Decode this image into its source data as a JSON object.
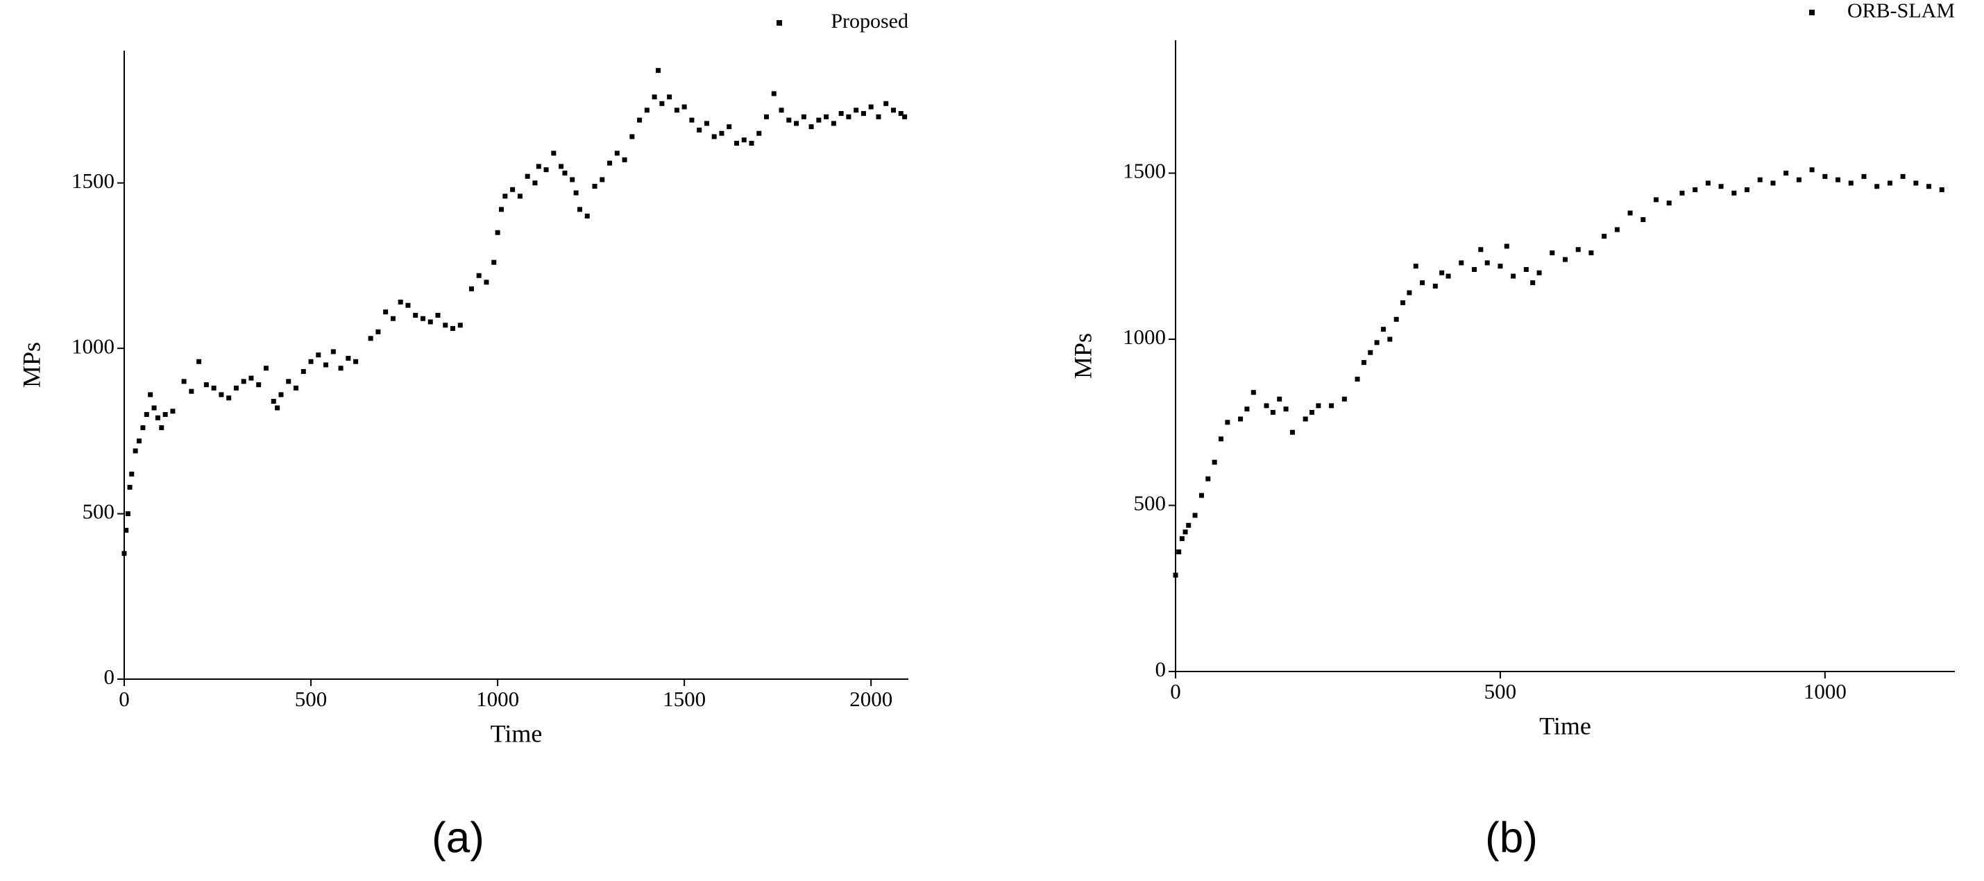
{
  "chart_data": [
    {
      "type": "scatter",
      "panel_label": "(a)",
      "x_label": "Time",
      "y_label": "MPs",
      "xlim": [
        0,
        2100
      ],
      "ylim": [
        0,
        1900
      ],
      "xticks": [
        0,
        500,
        1000,
        1500,
        2000
      ],
      "yticks": [
        0,
        500,
        1000,
        1500
      ],
      "legend": "upper right",
      "series": [
        {
          "name": "Proposed",
          "color": "#000000",
          "x": [
            0,
            5,
            10,
            15,
            20,
            30,
            40,
            50,
            60,
            70,
            80,
            90,
            100,
            110,
            130,
            160,
            180,
            200,
            220,
            240,
            260,
            280,
            300,
            320,
            340,
            360,
            380,
            400,
            410,
            420,
            440,
            460,
            480,
            500,
            520,
            540,
            560,
            580,
            600,
            620,
            660,
            680,
            700,
            720,
            740,
            760,
            780,
            800,
            820,
            840,
            860,
            880,
            900,
            930,
            950,
            970,
            990,
            1000,
            1010,
            1020,
            1040,
            1060,
            1080,
            1100,
            1110,
            1130,
            1150,
            1170,
            1180,
            1200,
            1210,
            1220,
            1240,
            1260,
            1280,
            1300,
            1320,
            1340,
            1360,
            1380,
            1400,
            1420,
            1430,
            1440,
            1460,
            1480,
            1500,
            1520,
            1540,
            1560,
            1580,
            1600,
            1620,
            1640,
            1660,
            1680,
            1700,
            1720,
            1740,
            1760,
            1780,
            1800,
            1820,
            1840,
            1860,
            1880,
            1900,
            1920,
            1940,
            1960,
            1980,
            2000,
            2020,
            2040,
            2060,
            2080,
            2090
          ],
          "values": [
            380,
            450,
            500,
            580,
            620,
            690,
            720,
            760,
            800,
            860,
            820,
            790,
            760,
            800,
            810,
            900,
            870,
            960,
            890,
            880,
            860,
            850,
            880,
            900,
            910,
            890,
            940,
            840,
            820,
            860,
            900,
            880,
            930,
            960,
            980,
            950,
            990,
            940,
            970,
            960,
            1030,
            1050,
            1110,
            1090,
            1140,
            1130,
            1100,
            1090,
            1080,
            1100,
            1070,
            1060,
            1070,
            1180,
            1220,
            1200,
            1260,
            1350,
            1420,
            1460,
            1480,
            1460,
            1520,
            1500,
            1550,
            1540,
            1590,
            1550,
            1530,
            1510,
            1470,
            1420,
            1400,
            1490,
            1510,
            1560,
            1590,
            1570,
            1640,
            1690,
            1720,
            1760,
            1840,
            1740,
            1760,
            1720,
            1730,
            1690,
            1660,
            1680,
            1640,
            1650,
            1670,
            1620,
            1630,
            1620,
            1650,
            1700,
            1770,
            1720,
            1690,
            1680,
            1700,
            1670,
            1690,
            1700,
            1680,
            1710,
            1700,
            1720,
            1710,
            1730,
            1700,
            1740,
            1720,
            1710,
            1700
          ]
        }
      ]
    },
    {
      "type": "scatter",
      "panel_label": "(b)",
      "x_label": "Time",
      "y_label": "MPs",
      "xlim": [
        0,
        1200
      ],
      "ylim": [
        0,
        1900
      ],
      "xticks": [
        0,
        500,
        1000
      ],
      "yticks": [
        0,
        500,
        1000,
        1500
      ],
      "legend": "upper right",
      "series": [
        {
          "name": "ORB-SLAM",
          "color": "#000000",
          "x": [
            0,
            5,
            10,
            15,
            20,
            30,
            40,
            50,
            60,
            70,
            80,
            100,
            110,
            120,
            140,
            150,
            160,
            170,
            180,
            200,
            210,
            220,
            240,
            260,
            280,
            290,
            300,
            310,
            320,
            330,
            340,
            350,
            360,
            370,
            380,
            400,
            410,
            420,
            440,
            460,
            470,
            480,
            500,
            510,
            520,
            540,
            550,
            560,
            580,
            600,
            620,
            640,
            660,
            680,
            700,
            720,
            740,
            760,
            780,
            800,
            820,
            840,
            860,
            880,
            900,
            920,
            940,
            960,
            980,
            1000,
            1020,
            1040,
            1060,
            1080,
            1100,
            1120,
            1140,
            1160,
            1180
          ],
          "values": [
            290,
            360,
            400,
            420,
            440,
            470,
            530,
            580,
            630,
            700,
            750,
            760,
            790,
            840,
            800,
            780,
            820,
            790,
            720,
            760,
            780,
            800,
            800,
            820,
            880,
            930,
            960,
            990,
            1030,
            1000,
            1060,
            1110,
            1140,
            1220,
            1170,
            1160,
            1200,
            1190,
            1230,
            1210,
            1270,
            1230,
            1220,
            1280,
            1190,
            1210,
            1170,
            1200,
            1260,
            1240,
            1270,
            1260,
            1310,
            1330,
            1380,
            1360,
            1420,
            1410,
            1440,
            1450,
            1470,
            1460,
            1440,
            1450,
            1480,
            1470,
            1500,
            1480,
            1510,
            1490,
            1480,
            1470,
            1490,
            1460,
            1470,
            1490,
            1470,
            1460,
            1450
          ]
        }
      ]
    }
  ]
}
